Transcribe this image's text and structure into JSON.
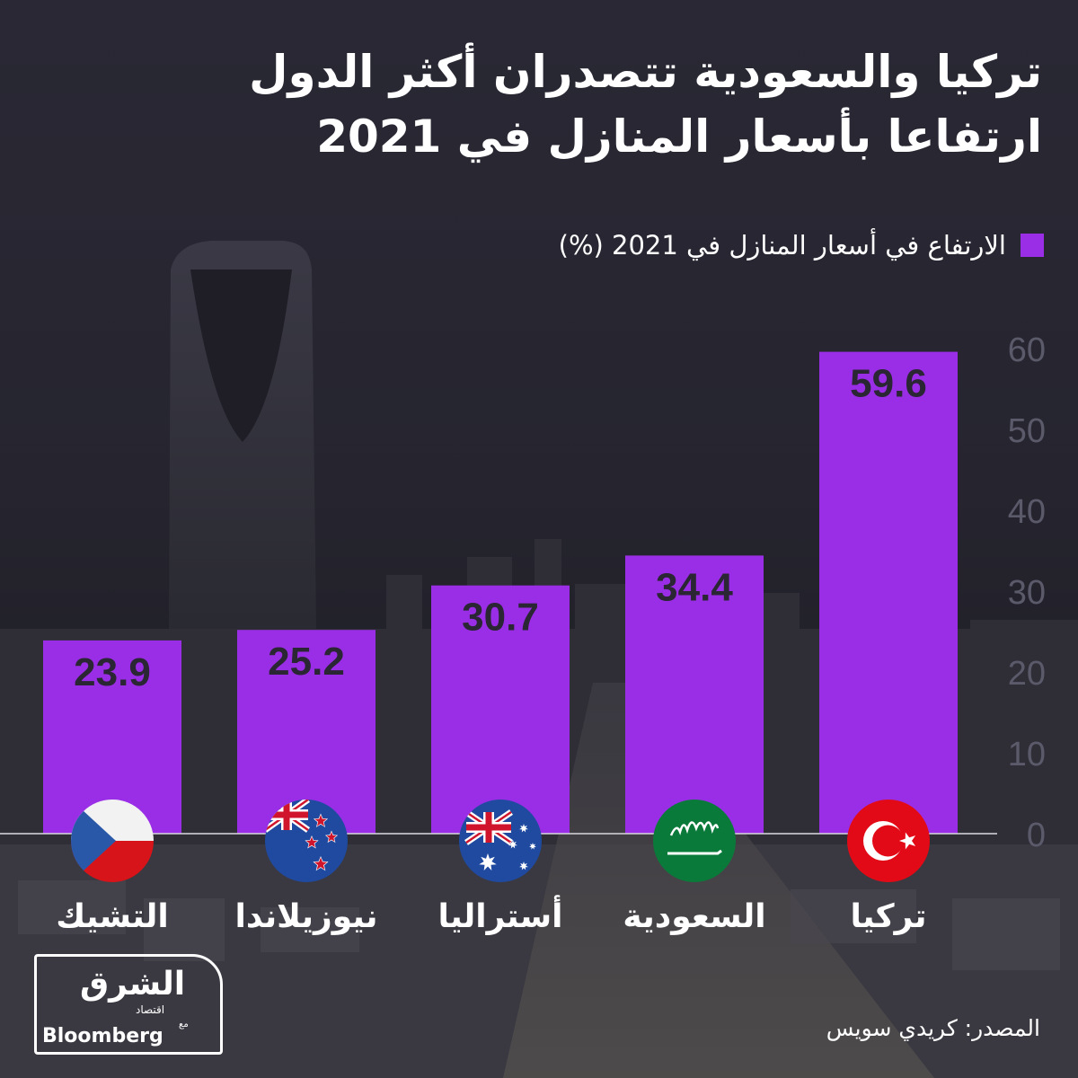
{
  "header": {
    "title_line1": "تركيا والسعودية تتصدران أكثر الدول",
    "title_line2": "ارتفاعا بأسعار المنازل في 2021"
  },
  "legend": {
    "label": "الارتفاع في أسعار المنازل في 2021 (%)",
    "color": "#9a2ee6"
  },
  "chart_data": {
    "type": "bar",
    "categories": [
      "التشيك",
      "نيوزيلاندا",
      "أستراليا",
      "السعودية",
      "تركيا"
    ],
    "flag_icons": [
      "czech-flag-icon",
      "new-zealand-flag-icon",
      "australia-flag-icon",
      "saudi-flag-icon",
      "turkey-flag-icon"
    ],
    "series": [
      {
        "name": "الارتفاع في أسعار المنازل في 2021 (%)",
        "values": [
          23.9,
          25.2,
          30.7,
          34.4,
          59.6
        ],
        "color": "#9a2ee6"
      }
    ],
    "value_labels": [
      "23.9",
      "25.2",
      "30.7",
      "34.4",
      "59.6"
    ],
    "yticks": [
      "0",
      "10",
      "20",
      "30",
      "40",
      "50",
      "60"
    ],
    "ylim": [
      0,
      60
    ],
    "y_axis_side": "right",
    "grid": false
  },
  "footer": {
    "source": "المصدر: كريدي سويس",
    "logo": {
      "main": "الشرق",
      "sub": "اقتصاد",
      "with": "مع",
      "brand": "Bloomberg"
    }
  }
}
